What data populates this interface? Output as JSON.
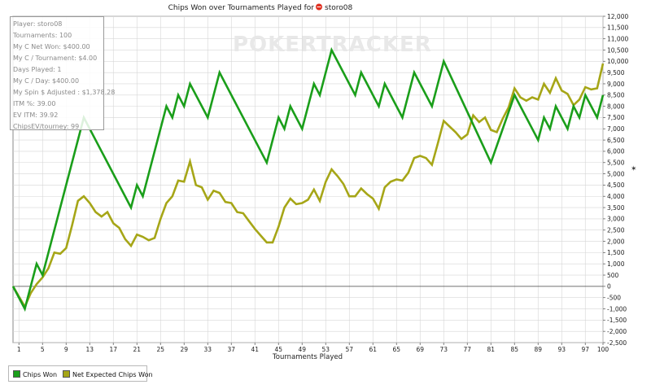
{
  "title": "Chips Won over Tournaments Played for",
  "player_name": "storo08",
  "watermark": "POKERTRACKER",
  "info": [
    "Player: storo08",
    "Tournaments: 100",
    "My C Net Won: $400.00",
    "My C / Tournament: $4.00",
    "Days Played: 1",
    "My C / Day: $400.00",
    "My Spin $ Adjusted : $1,378.28",
    "ITM %: 39.00",
    "EV ITM: 39.92",
    "ChipsEV/tourney: 99"
  ],
  "legend": [
    {
      "label": "Chips Won",
      "color": "#1a9e1a"
    },
    {
      "label": "Net Expected Chips Won",
      "color": "#a6a617"
    }
  ],
  "chart_data": {
    "type": "line",
    "title": "Chips Won over Tournaments Played for storo08",
    "xlabel": "Tournaments Played",
    "ylabel": "",
    "xlim": [
      0,
      100
    ],
    "ylim": [
      -2500,
      12000
    ],
    "x_ticks": [
      "1",
      "5",
      "9",
      "13",
      "17",
      "21",
      "25",
      "29",
      "33",
      "37",
      "41",
      "45",
      "49",
      "53",
      "57",
      "61",
      "65",
      "69",
      "73",
      "77",
      "81",
      "85",
      "89",
      "93",
      "97",
      "100"
    ],
    "y_ticks": [
      "12,000",
      "11,500",
      "11,000",
      "10,500",
      "10,000",
      "9,500",
      "9,000",
      "8,500",
      "8,000",
      "7,500",
      "7,000",
      "6,500",
      "6,000",
      "5,500",
      "5,000",
      "4,500",
      "4,000",
      "3,500",
      "3,000",
      "2,500",
      "2,000",
      "1,500",
      "1,000",
      "500",
      "0",
      "-500",
      "-1,000",
      "-1,500",
      "-2,000",
      "-2,500"
    ],
    "grid": true,
    "series": [
      {
        "name": "Chips Won",
        "color": "#1a9e1a",
        "points": [
          [
            0,
            0
          ],
          [
            2,
            -1000
          ],
          [
            4,
            1000
          ],
          [
            5,
            500
          ],
          [
            12,
            7500
          ],
          [
            20,
            3500
          ],
          [
            21,
            4500
          ],
          [
            22,
            4000
          ],
          [
            26,
            8000
          ],
          [
            27,
            7500
          ],
          [
            28,
            8500
          ],
          [
            29,
            8000
          ],
          [
            30,
            9000
          ],
          [
            33,
            7500
          ],
          [
            35,
            9500
          ],
          [
            43,
            5500
          ],
          [
            45,
            7500
          ],
          [
            46,
            7000
          ],
          [
            47,
            8000
          ],
          [
            49,
            7000
          ],
          [
            51,
            9000
          ],
          [
            52,
            8500
          ],
          [
            54,
            10500
          ],
          [
            58,
            8500
          ],
          [
            59,
            9500
          ],
          [
            62,
            8000
          ],
          [
            63,
            9000
          ],
          [
            66,
            7500
          ],
          [
            68,
            9500
          ],
          [
            71,
            8000
          ],
          [
            73,
            10000
          ],
          [
            81,
            5500
          ],
          [
            85,
            8500
          ],
          [
            89,
            6500
          ],
          [
            90,
            7500
          ],
          [
            91,
            7000
          ],
          [
            92,
            8000
          ],
          [
            94,
            7000
          ],
          [
            95,
            8000
          ],
          [
            96,
            7500
          ],
          [
            97,
            8500
          ],
          [
            99,
            7500
          ],
          [
            100,
            8500
          ]
        ]
      },
      {
        "name": "Net Expected Chips Won",
        "color": "#a6a617",
        "points": [
          [
            0,
            0
          ],
          [
            2,
            -900
          ],
          [
            3,
            -300
          ],
          [
            4,
            100
          ],
          [
            5,
            400
          ],
          [
            6,
            800
          ],
          [
            7,
            1500
          ],
          [
            8,
            1450
          ],
          [
            9,
            1700
          ],
          [
            10,
            2700
          ],
          [
            11,
            3800
          ],
          [
            12,
            4000
          ],
          [
            13,
            3700
          ],
          [
            14,
            3300
          ],
          [
            15,
            3100
          ],
          [
            16,
            3300
          ],
          [
            17,
            2800
          ],
          [
            18,
            2600
          ],
          [
            19,
            2100
          ],
          [
            20,
            1800
          ],
          [
            21,
            2300
          ],
          [
            22,
            2200
          ],
          [
            23,
            2050
          ],
          [
            24,
            2150
          ],
          [
            25,
            3000
          ],
          [
            26,
            3700
          ],
          [
            27,
            4000
          ],
          [
            28,
            4700
          ],
          [
            29,
            4650
          ],
          [
            30,
            5550
          ],
          [
            31,
            4500
          ],
          [
            32,
            4400
          ],
          [
            33,
            3850
          ],
          [
            34,
            4250
          ],
          [
            35,
            4150
          ],
          [
            36,
            3750
          ],
          [
            37,
            3700
          ],
          [
            38,
            3300
          ],
          [
            39,
            3250
          ],
          [
            40,
            2900
          ],
          [
            41,
            2550
          ],
          [
            42,
            2250
          ],
          [
            43,
            1950
          ],
          [
            44,
            1950
          ],
          [
            45,
            2650
          ],
          [
            46,
            3500
          ],
          [
            47,
            3900
          ],
          [
            48,
            3650
          ],
          [
            49,
            3700
          ],
          [
            50,
            3850
          ],
          [
            51,
            4300
          ],
          [
            52,
            3800
          ],
          [
            53,
            4650
          ],
          [
            54,
            5200
          ],
          [
            55,
            4900
          ],
          [
            56,
            4550
          ],
          [
            57,
            4000
          ],
          [
            58,
            4000
          ],
          [
            59,
            4350
          ],
          [
            60,
            4100
          ],
          [
            61,
            3900
          ],
          [
            62,
            3450
          ],
          [
            63,
            4400
          ],
          [
            64,
            4650
          ],
          [
            65,
            4750
          ],
          [
            66,
            4700
          ],
          [
            67,
            5050
          ],
          [
            68,
            5700
          ],
          [
            69,
            5800
          ],
          [
            70,
            5700
          ],
          [
            71,
            5400
          ],
          [
            72,
            6350
          ],
          [
            73,
            7350
          ],
          [
            74,
            7100
          ],
          [
            75,
            6850
          ],
          [
            76,
            6550
          ],
          [
            77,
            6750
          ],
          [
            78,
            7600
          ],
          [
            79,
            7300
          ],
          [
            80,
            7500
          ],
          [
            81,
            6950
          ],
          [
            82,
            6850
          ],
          [
            83,
            7450
          ],
          [
            84,
            7950
          ],
          [
            85,
            8800
          ],
          [
            86,
            8400
          ],
          [
            87,
            8250
          ],
          [
            88,
            8400
          ],
          [
            89,
            8300
          ],
          [
            90,
            9000
          ],
          [
            91,
            8600
          ],
          [
            92,
            9250
          ],
          [
            93,
            8700
          ],
          [
            94,
            8550
          ],
          [
            95,
            8050
          ],
          [
            96,
            8300
          ],
          [
            97,
            8850
          ],
          [
            98,
            8750
          ],
          [
            99,
            8800
          ],
          [
            100,
            9900
          ]
        ]
      }
    ]
  }
}
